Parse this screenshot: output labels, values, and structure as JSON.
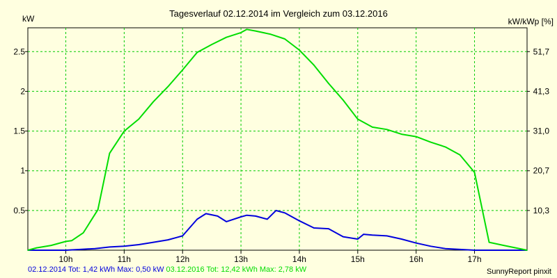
{
  "chart_data": {
    "type": "line",
    "title": "Tagesverlauf 02.12.2014 im Vergleich zum 03.12.2016",
    "ylabel_left": "kW",
    "ylabel_right": "kW/kWp [%]",
    "xlim": [
      9.35,
      17.9
    ],
    "ylim": [
      0,
      2.8
    ],
    "x_ticks": [
      {
        "value": 10,
        "label": "10h"
      },
      {
        "value": 11,
        "label": "11h"
      },
      {
        "value": 12,
        "label": "12h"
      },
      {
        "value": 13,
        "label": "13h"
      },
      {
        "value": 14,
        "label": "14h"
      },
      {
        "value": 15,
        "label": "15h"
      },
      {
        "value": 16,
        "label": "16h"
      },
      {
        "value": 17,
        "label": "17h"
      }
    ],
    "y_ticks_left": [
      {
        "value": 0.5,
        "label": "0.5"
      },
      {
        "value": 1.0,
        "label": "1"
      },
      {
        "value": 1.5,
        "label": "1.5"
      },
      {
        "value": 2.0,
        "label": "2"
      },
      {
        "value": 2.5,
        "label": "2.5"
      }
    ],
    "y_ticks_right": [
      {
        "value": 0.5,
        "label": "10,3"
      },
      {
        "value": 1.0,
        "label": "20,7"
      },
      {
        "value": 1.5,
        "label": "31,0"
      },
      {
        "value": 2.0,
        "label": "41,3"
      },
      {
        "value": 2.5,
        "label": "51,7"
      }
    ],
    "grid": true,
    "series": [
      {
        "name": "02.12.2014",
        "color": "#0000dd",
        "x": [
          9.35,
          9.5,
          9.75,
          10.0,
          10.25,
          10.5,
          10.75,
          11.0,
          11.25,
          11.5,
          11.75,
          12.0,
          12.25,
          12.4,
          12.6,
          12.75,
          13.0,
          13.1,
          13.25,
          13.45,
          13.6,
          13.75,
          14.0,
          14.25,
          14.5,
          14.75,
          15.0,
          15.1,
          15.25,
          15.5,
          15.75,
          16.0,
          16.25,
          16.5,
          16.75,
          17.0,
          17.25,
          17.5,
          17.9
        ],
        "y": [
          0.0,
          0.0,
          0.0,
          0.0,
          0.01,
          0.02,
          0.04,
          0.05,
          0.07,
          0.1,
          0.13,
          0.18,
          0.39,
          0.46,
          0.43,
          0.36,
          0.42,
          0.44,
          0.43,
          0.39,
          0.5,
          0.47,
          0.37,
          0.28,
          0.27,
          0.17,
          0.14,
          0.2,
          0.19,
          0.18,
          0.14,
          0.09,
          0.05,
          0.02,
          0.01,
          0.0,
          0.0,
          0.0,
          0.0
        ]
      },
      {
        "name": "03.12.2016",
        "color": "#00dd00",
        "x": [
          9.35,
          9.5,
          9.75,
          10.0,
          10.1,
          10.3,
          10.55,
          10.75,
          11.0,
          11.25,
          11.5,
          11.75,
          12.0,
          12.25,
          12.5,
          12.75,
          13.0,
          13.1,
          13.25,
          13.5,
          13.75,
          14.0,
          14.25,
          14.5,
          14.75,
          15.0,
          15.25,
          15.5,
          15.75,
          16.0,
          16.25,
          16.5,
          16.75,
          17.0,
          17.25,
          17.5,
          17.9
        ],
        "y": [
          0.0,
          0.03,
          0.06,
          0.11,
          0.12,
          0.22,
          0.51,
          1.22,
          1.5,
          1.65,
          1.87,
          2.06,
          2.27,
          2.49,
          2.59,
          2.68,
          2.74,
          2.78,
          2.76,
          2.72,
          2.66,
          2.52,
          2.33,
          2.1,
          1.89,
          1.65,
          1.55,
          1.52,
          1.46,
          1.43,
          1.36,
          1.3,
          1.2,
          0.98,
          0.1,
          0.06,
          0.0
        ]
      }
    ]
  },
  "footer": {
    "summary_2014": "02.12.2014 Tot: 1,42 kWh Max: 0,50 kW",
    "summary_2016": "03.12.2016 Tot: 12,42 kWh Max: 2,78 kW",
    "credit": "SunnyReport pinxit"
  }
}
